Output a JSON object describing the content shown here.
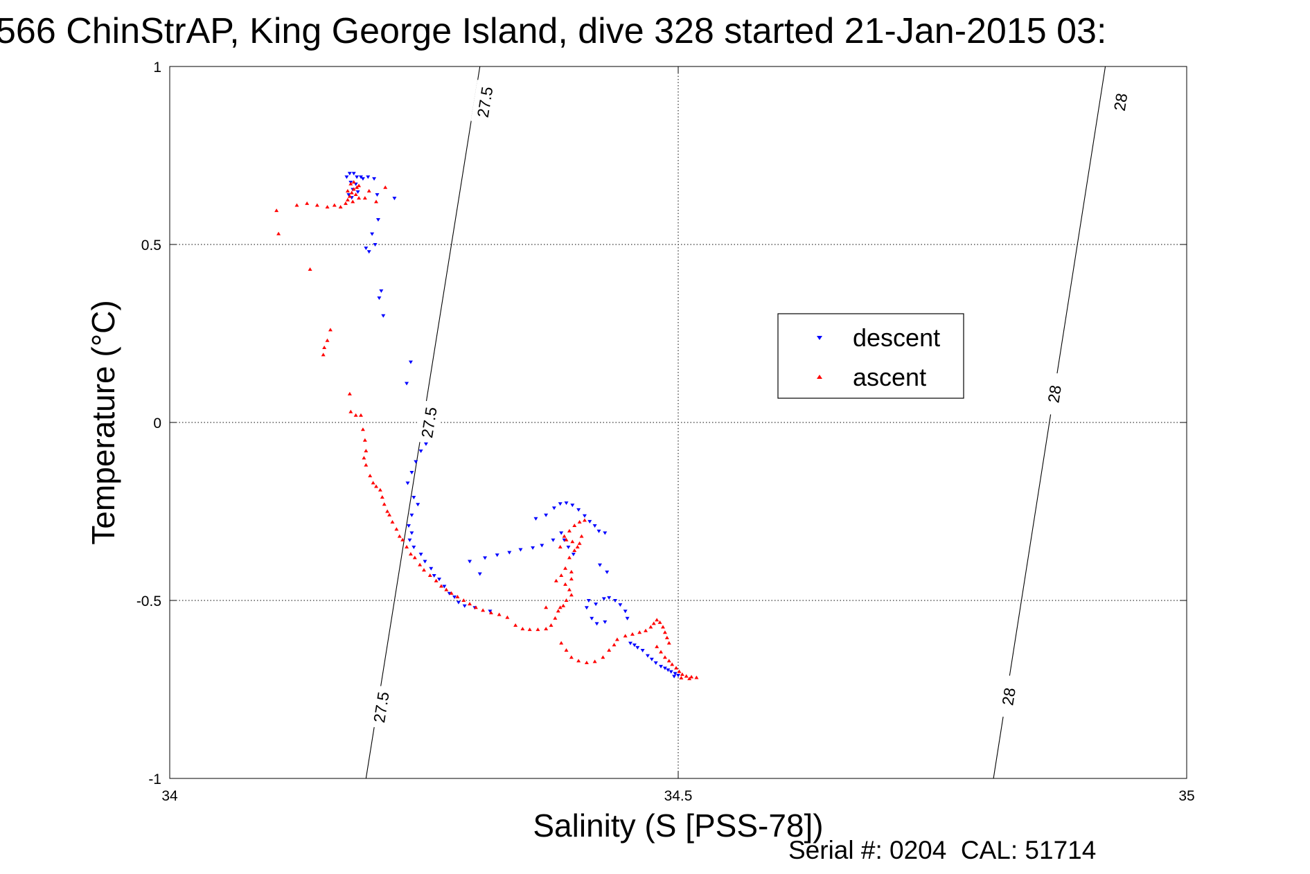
{
  "chart_data": {
    "type": "scatter",
    "title": "566 ChinStrAP, King George Island, dive 328 started 21-Jan-2015 03:",
    "xlabel": "Salinity (S [PSS-78])",
    "ylabel": "Temperature (°C)",
    "xlim": [
      34,
      35
    ],
    "ylim": [
      -1,
      1
    ],
    "xticks": [
      34,
      34.5,
      35
    ],
    "xtick_labels": [
      "34",
      "34.5",
      "35"
    ],
    "yticks": [
      -1,
      -0.5,
      0,
      0.5,
      1
    ],
    "ytick_labels": [
      "-1",
      "-0.5",
      "0",
      "0.5",
      "1"
    ],
    "grid": true,
    "legend_position": "center-right",
    "footer": "Serial #: 0204  CAL: 51714",
    "density_contours": [
      {
        "label": "27.5",
        "points": [
          [
            34.193,
            -1.0
          ],
          [
            34.305,
            1.0
          ]
        ],
        "label_positions": [
          [
            34.208,
            -0.8
          ],
          [
            34.255,
            0.0
          ],
          [
            34.31,
            0.9
          ]
        ]
      },
      {
        "label": "28",
        "points": [
          [
            34.81,
            -1.0
          ],
          [
            34.92,
            1.0
          ]
        ],
        "label_positions": [
          [
            34.825,
            -0.77
          ],
          [
            34.87,
            0.08
          ],
          [
            34.935,
            0.9
          ]
        ]
      }
    ],
    "series": [
      {
        "name": "descent",
        "marker": "triangle-down",
        "color": "#0000ff",
        "points": [
          [
            34.174,
            0.69
          ],
          [
            34.177,
            0.7
          ],
          [
            34.181,
            0.7
          ],
          [
            34.184,
            0.69
          ],
          [
            34.188,
            0.69
          ],
          [
            34.19,
            0.685
          ],
          [
            34.195,
            0.69
          ],
          [
            34.201,
            0.685
          ],
          [
            34.178,
            0.675
          ],
          [
            34.183,
            0.67
          ],
          [
            34.18,
            0.655
          ],
          [
            34.185,
            0.648
          ],
          [
            34.176,
            0.64
          ],
          [
            34.179,
            0.632
          ],
          [
            34.221,
            0.63
          ],
          [
            34.204,
            0.64
          ],
          [
            34.205,
            0.57
          ],
          [
            34.199,
            0.53
          ],
          [
            34.202,
            0.5
          ],
          [
            34.193,
            0.49
          ],
          [
            34.196,
            0.48
          ],
          [
            34.208,
            0.37
          ],
          [
            34.206,
            0.35
          ],
          [
            34.21,
            0.3
          ],
          [
            34.237,
            0.17
          ],
          [
            34.233,
            0.11
          ],
          [
            34.252,
            -0.06
          ],
          [
            34.247,
            -0.08
          ],
          [
            34.242,
            -0.11
          ],
          [
            34.238,
            -0.14
          ],
          [
            34.234,
            -0.17
          ],
          [
            34.24,
            -0.21
          ],
          [
            34.244,
            -0.23
          ],
          [
            34.238,
            -0.26
          ],
          [
            34.235,
            -0.29
          ],
          [
            34.238,
            -0.31
          ],
          [
            34.236,
            -0.33
          ],
          [
            34.24,
            -0.35
          ],
          [
            34.247,
            -0.37
          ],
          [
            34.251,
            -0.39
          ],
          [
            34.257,
            -0.41
          ],
          [
            34.26,
            -0.43
          ],
          [
            34.265,
            -0.44
          ],
          [
            34.27,
            -0.46
          ],
          [
            34.275,
            -0.48
          ],
          [
            34.28,
            -0.49
          ],
          [
            34.284,
            -0.505
          ],
          [
            34.29,
            -0.515
          ],
          [
            34.3,
            -0.52
          ],
          [
            34.315,
            -0.53
          ],
          [
            34.305,
            -0.425
          ],
          [
            34.295,
            -0.39
          ],
          [
            34.31,
            -0.38
          ],
          [
            34.322,
            -0.372
          ],
          [
            34.334,
            -0.365
          ],
          [
            34.345,
            -0.357
          ],
          [
            34.357,
            -0.352
          ],
          [
            34.366,
            -0.345
          ],
          [
            34.377,
            -0.33
          ],
          [
            34.385,
            -0.31
          ],
          [
            34.36,
            -0.27
          ],
          [
            34.37,
            -0.26
          ],
          [
            34.378,
            -0.24
          ],
          [
            34.384,
            -0.228
          ],
          [
            34.39,
            -0.226
          ],
          [
            34.396,
            -0.232
          ],
          [
            34.402,
            -0.245
          ],
          [
            34.408,
            -0.262
          ],
          [
            34.413,
            -0.278
          ],
          [
            34.418,
            -0.29
          ],
          [
            34.422,
            -0.305
          ],
          [
            34.428,
            -0.31
          ],
          [
            34.388,
            -0.33
          ],
          [
            34.392,
            -0.35
          ],
          [
            34.397,
            -0.37
          ],
          [
            34.423,
            -0.4
          ],
          [
            34.43,
            -0.42
          ],
          [
            34.412,
            -0.5
          ],
          [
            34.419,
            -0.51
          ],
          [
            34.427,
            -0.495
          ],
          [
            34.432,
            -0.492
          ],
          [
            34.438,
            -0.5
          ],
          [
            34.443,
            -0.512
          ],
          [
            34.448,
            -0.53
          ],
          [
            34.45,
            -0.55
          ],
          [
            34.41,
            -0.52
          ],
          [
            34.415,
            -0.55
          ],
          [
            34.42,
            -0.565
          ],
          [
            34.428,
            -0.56
          ],
          [
            34.453,
            -0.62
          ],
          [
            34.457,
            -0.625
          ],
          [
            34.46,
            -0.632
          ],
          [
            34.465,
            -0.64
          ],
          [
            34.47,
            -0.655
          ],
          [
            34.474,
            -0.665
          ],
          [
            34.478,
            -0.675
          ],
          [
            34.483,
            -0.685
          ],
          [
            34.487,
            -0.69
          ],
          [
            34.49,
            -0.695
          ],
          [
            34.493,
            -0.7
          ],
          [
            34.497,
            -0.705
          ],
          [
            34.5,
            -0.71
          ],
          [
            34.496,
            -0.713
          ]
        ]
      },
      {
        "name": "ascent",
        "marker": "triangle-up",
        "color": "#ff0000",
        "points": [
          [
            34.105,
            0.595
          ],
          [
            34.107,
            0.53
          ],
          [
            34.125,
            0.61
          ],
          [
            34.135,
            0.615
          ],
          [
            34.145,
            0.61
          ],
          [
            34.155,
            0.605
          ],
          [
            34.162,
            0.61
          ],
          [
            34.168,
            0.605
          ],
          [
            34.173,
            0.615
          ],
          [
            34.175,
            0.625
          ],
          [
            34.177,
            0.635
          ],
          [
            34.179,
            0.645
          ],
          [
            34.181,
            0.655
          ],
          [
            34.184,
            0.66
          ],
          [
            34.186,
            0.665
          ],
          [
            34.178,
            0.67
          ],
          [
            34.181,
            0.675
          ],
          [
            34.175,
            0.65
          ],
          [
            34.183,
            0.64
          ],
          [
            34.186,
            0.63
          ],
          [
            34.18,
            0.62
          ],
          [
            34.196,
            0.65
          ],
          [
            34.192,
            0.63
          ],
          [
            34.203,
            0.62
          ],
          [
            34.212,
            0.66
          ],
          [
            34.138,
            0.43
          ],
          [
            34.158,
            0.26
          ],
          [
            34.155,
            0.23
          ],
          [
            34.152,
            0.21
          ],
          [
            34.151,
            0.19
          ],
          [
            34.177,
            0.08
          ],
          [
            34.178,
            0.03
          ],
          [
            34.183,
            0.02
          ],
          [
            34.188,
            0.02
          ],
          [
            34.19,
            -0.02
          ],
          [
            34.192,
            -0.05
          ],
          [
            34.193,
            -0.08
          ],
          [
            34.191,
            -0.1
          ],
          [
            34.193,
            -0.12
          ],
          [
            34.197,
            -0.15
          ],
          [
            34.2,
            -0.17
          ],
          [
            34.203,
            -0.18
          ],
          [
            34.207,
            -0.19
          ],
          [
            34.209,
            -0.21
          ],
          [
            34.211,
            -0.23
          ],
          [
            34.214,
            -0.25
          ],
          [
            34.216,
            -0.26
          ],
          [
            34.219,
            -0.28
          ],
          [
            34.223,
            -0.3
          ],
          [
            34.226,
            -0.32
          ],
          [
            34.229,
            -0.33
          ],
          [
            34.233,
            -0.35
          ],
          [
            34.237,
            -0.37
          ],
          [
            34.241,
            -0.38
          ],
          [
            34.246,
            -0.4
          ],
          [
            34.25,
            -0.415
          ],
          [
            34.256,
            -0.43
          ],
          [
            34.262,
            -0.445
          ],
          [
            34.267,
            -0.46
          ],
          [
            34.272,
            -0.47
          ],
          [
            34.277,
            -0.48
          ],
          [
            34.283,
            -0.49
          ],
          [
            34.289,
            -0.5
          ],
          [
            34.295,
            -0.51
          ],
          [
            34.301,
            -0.52
          ],
          [
            34.308,
            -0.528
          ],
          [
            34.316,
            -0.535
          ],
          [
            34.324,
            -0.54
          ],
          [
            34.332,
            -0.548
          ],
          [
            34.34,
            -0.57
          ],
          [
            34.347,
            -0.58
          ],
          [
            34.354,
            -0.582
          ],
          [
            34.362,
            -0.582
          ],
          [
            34.37,
            -0.58
          ],
          [
            34.375,
            -0.57
          ],
          [
            34.379,
            -0.55
          ],
          [
            34.382,
            -0.53
          ],
          [
            34.387,
            -0.515
          ],
          [
            34.39,
            -0.5
          ],
          [
            34.384,
            -0.52
          ],
          [
            34.393,
            -0.47
          ],
          [
            34.395,
            -0.44
          ],
          [
            34.395,
            -0.42
          ],
          [
            34.385,
            -0.43
          ],
          [
            34.389,
            -0.41
          ],
          [
            34.393,
            -0.38
          ],
          [
            34.398,
            -0.36
          ],
          [
            34.403,
            -0.34
          ],
          [
            34.396,
            -0.335
          ],
          [
            34.39,
            -0.33
          ],
          [
            34.384,
            -0.35
          ],
          [
            34.388,
            -0.32
          ],
          [
            34.393,
            -0.305
          ],
          [
            34.398,
            -0.29
          ],
          [
            34.403,
            -0.28
          ],
          [
            34.408,
            -0.275
          ],
          [
            34.401,
            -0.35
          ],
          [
            34.405,
            -0.32
          ],
          [
            34.38,
            -0.445
          ],
          [
            34.389,
            -0.455
          ],
          [
            34.395,
            -0.485
          ],
          [
            34.37,
            -0.52
          ],
          [
            34.385,
            -0.62
          ],
          [
            34.39,
            -0.64
          ],
          [
            34.395,
            -0.66
          ],
          [
            34.402,
            -0.67
          ],
          [
            34.41,
            -0.675
          ],
          [
            34.418,
            -0.672
          ],
          [
            34.426,
            -0.66
          ],
          [
            34.432,
            -0.64
          ],
          [
            34.437,
            -0.625
          ],
          [
            34.44,
            -0.61
          ],
          [
            34.448,
            -0.6
          ],
          [
            34.455,
            -0.595
          ],
          [
            34.462,
            -0.59
          ],
          [
            34.468,
            -0.585
          ],
          [
            34.473,
            -0.575
          ],
          [
            34.476,
            -0.565
          ],
          [
            34.479,
            -0.555
          ],
          [
            34.482,
            -0.562
          ],
          [
            34.485,
            -0.575
          ],
          [
            34.487,
            -0.59
          ],
          [
            34.489,
            -0.605
          ],
          [
            34.491,
            -0.62
          ],
          [
            34.479,
            -0.63
          ],
          [
            34.483,
            -0.645
          ],
          [
            34.487,
            -0.66
          ],
          [
            34.491,
            -0.67
          ],
          [
            34.494,
            -0.68
          ],
          [
            34.498,
            -0.69
          ],
          [
            34.501,
            -0.7
          ],
          [
            34.504,
            -0.708
          ],
          [
            34.508,
            -0.713
          ],
          [
            34.513,
            -0.715
          ],
          [
            34.518,
            -0.717
          ],
          [
            34.511,
            -0.72
          ],
          [
            34.503,
            -0.718
          ]
        ]
      }
    ]
  }
}
